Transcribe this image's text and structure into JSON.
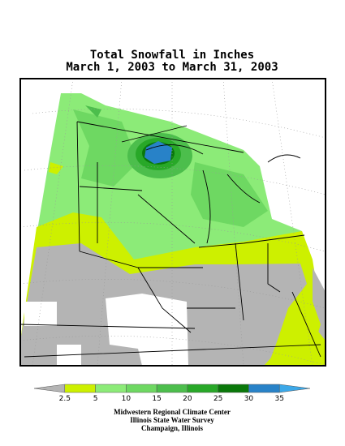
{
  "title": [
    "Total Snowfall in Inches",
    "March 1, 2003 to March 31, 2003"
  ],
  "legend": {
    "ticks": [
      "2.5",
      "5",
      "10",
      "15",
      "20",
      "25",
      "30",
      "35"
    ],
    "colors": [
      "#b4b4b4",
      "#cdf000",
      "#8ceb78",
      "#6ed862",
      "#4cbe4c",
      "#28a828",
      "#0a780a",
      "#2882c8",
      "#3ca8e8"
    ]
  },
  "credits": [
    "Midwestern Regional Climate Center",
    "Illinois State Water Survey",
    "Champaign, Illinois"
  ]
}
